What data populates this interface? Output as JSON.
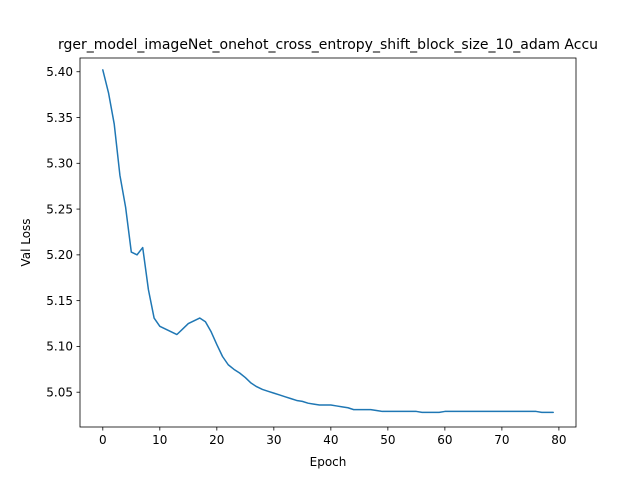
{
  "chart_data": {
    "type": "line",
    "title": "rger_model_imageNet_onehot_cross_entropy_shift_block_size_10_adam Accu",
    "xlabel": "Epoch",
    "ylabel": "Val Loss",
    "xlim": [
      -4,
      83
    ],
    "ylim": [
      5.012,
      5.415
    ],
    "xticks": [
      0,
      10,
      20,
      30,
      40,
      50,
      60,
      70,
      80
    ],
    "xtick_labels": [
      "0",
      "10",
      "20",
      "30",
      "40",
      "50",
      "60",
      "70",
      "80"
    ],
    "yticks": [
      5.05,
      5.1,
      5.15,
      5.2,
      5.25,
      5.3,
      5.35,
      5.4
    ],
    "ytick_labels": [
      "5.05",
      "5.10",
      "5.15",
      "5.20",
      "5.25",
      "5.30",
      "5.35",
      "5.40"
    ],
    "grid": false,
    "series": [
      {
        "color": "#1f77b4",
        "x": [
          0,
          1,
          2,
          3,
          4,
          5,
          6,
          7,
          8,
          9,
          10,
          11,
          12,
          13,
          14,
          15,
          16,
          17,
          18,
          19,
          20,
          21,
          22,
          23,
          24,
          25,
          26,
          27,
          28,
          29,
          30,
          31,
          32,
          33,
          34,
          35,
          36,
          37,
          38,
          39,
          40,
          41,
          42,
          43,
          44,
          45,
          46,
          47,
          48,
          49,
          50,
          51,
          52,
          53,
          54,
          55,
          56,
          57,
          58,
          59,
          60,
          61,
          62,
          63,
          64,
          65,
          66,
          67,
          68,
          69,
          70,
          71,
          72,
          73,
          74,
          75,
          76,
          77,
          78,
          79
        ],
        "y": [
          5.402,
          5.377,
          5.343,
          5.287,
          5.252,
          5.203,
          5.2,
          5.208,
          5.162,
          5.131,
          5.122,
          5.119,
          5.116,
          5.113,
          5.119,
          5.125,
          5.128,
          5.131,
          5.127,
          5.116,
          5.102,
          5.089,
          5.08,
          5.075,
          5.071,
          5.066,
          5.06,
          5.056,
          5.053,
          5.051,
          5.049,
          5.047,
          5.045,
          5.043,
          5.041,
          5.04,
          5.038,
          5.037,
          5.036,
          5.036,
          5.036,
          5.035,
          5.034,
          5.033,
          5.031,
          5.031,
          5.031,
          5.031,
          5.03,
          5.029,
          5.029,
          5.029,
          5.029,
          5.029,
          5.029,
          5.029,
          5.028,
          5.028,
          5.028,
          5.028,
          5.029,
          5.029,
          5.029,
          5.029,
          5.029,
          5.029,
          5.029,
          5.029,
          5.029,
          5.029,
          5.029,
          5.029,
          5.029,
          5.029,
          5.029,
          5.029,
          5.029,
          5.028,
          5.028,
          5.028
        ]
      }
    ]
  }
}
